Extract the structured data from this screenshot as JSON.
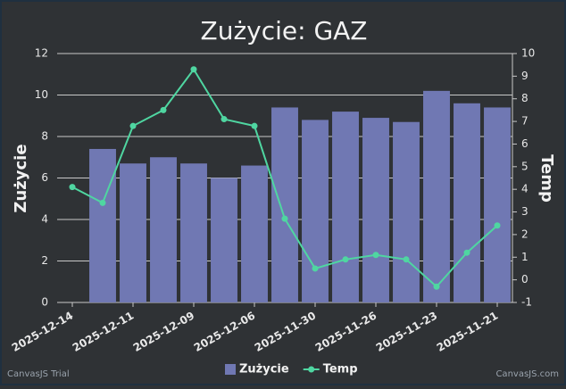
{
  "chart_data": {
    "type": "bar_line",
    "title": "Zużycie: GAZ",
    "y_label": "Zużycie",
    "y2_label": "Temp",
    "categories": [
      "2025-12-14",
      null,
      "2025-12-11",
      null,
      "2025-12-09",
      null,
      "2025-12-06",
      null,
      "2025-11-30",
      null,
      "2025-11-26",
      null,
      "2025-11-23",
      null,
      "2025-11-21"
    ],
    "series": [
      {
        "name": "Zużycie",
        "type": "bar",
        "color": "#7078b3",
        "values": [
          null,
          7.4,
          6.7,
          7.0,
          6.7,
          6.0,
          6.6,
          9.4,
          8.8,
          9.2,
          8.9,
          8.7,
          10.2,
          9.6,
          9.4
        ]
      },
      {
        "name": "Temp",
        "type": "line",
        "axis": "y2",
        "color": "#4fd6a1",
        "values": [
          4.1,
          3.4,
          6.8,
          7.5,
          9.3,
          7.1,
          6.8,
          2.7,
          0.5,
          0.9,
          1.1,
          0.9,
          -0.3,
          1.2,
          2.4
        ]
      }
    ],
    "ylim": [
      0,
      12
    ],
    "yticks": [
      0,
      2,
      4,
      6,
      8,
      10,
      12
    ],
    "y2lim": [
      -1,
      10
    ],
    "y2ticks": [
      -1,
      0,
      1,
      2,
      3,
      4,
      5,
      6,
      7,
      8,
      9,
      10
    ],
    "grid": true,
    "legend": "bottom",
    "credits": [
      "CanvasJS Trial",
      "CanvasJS.com"
    ]
  }
}
